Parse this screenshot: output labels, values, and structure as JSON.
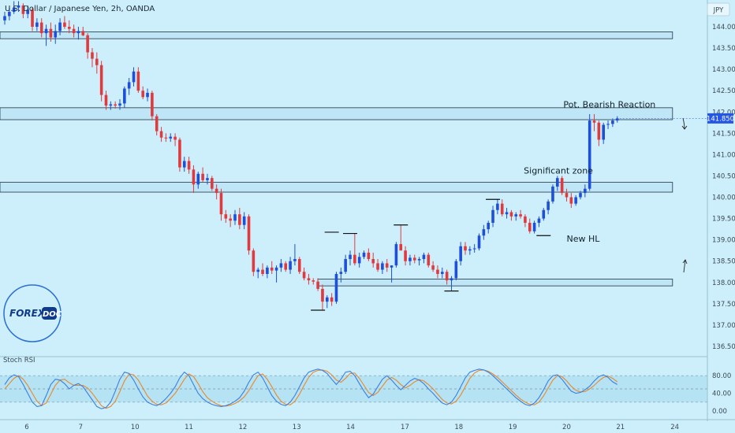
{
  "chart_data": {
    "type": "candlestick",
    "title": "U.S. Dollar / Japanese Yen, 2h, OANDA",
    "currency_label": "JPY",
    "last_price": "141.850",
    "colors": {
      "background": "#cdeffb",
      "up": "#1f4fd8",
      "down": "#e03a3e",
      "zone_fill": "#bfe6f7",
      "zone_stroke": "#22323d",
      "rsi_k": "#3b7fe0",
      "rsi_d": "#e8892a",
      "price_badge": "#2456e6"
    },
    "ylim": [
      136.5,
      144.0
    ],
    "yticks": [
      "144.000",
      "143.500",
      "143.000",
      "142.500",
      "142.000",
      "141.500",
      "141.000",
      "140.500",
      "140.000",
      "139.500",
      "139.000",
      "138.500",
      "138.000",
      "137.500",
      "137.000",
      "136.500"
    ],
    "xticks": [
      {
        "label": "6",
        "pos": 0
      },
      {
        "label": "7",
        "pos": 11.7
      },
      {
        "label": "10",
        "pos": 23.5
      },
      {
        "label": "11",
        "pos": 35.2
      },
      {
        "label": "12",
        "pos": 46.9
      },
      {
        "label": "13",
        "pos": 58.6
      },
      {
        "label": "14",
        "pos": 70.3
      },
      {
        "label": "17",
        "pos": 82.1
      },
      {
        "label": "18",
        "pos": 93.8
      },
      {
        "label": "19",
        "pos": 105.5
      },
      {
        "label": "20",
        "pos": 117.2
      },
      {
        "label": "21",
        "pos": 128.9
      },
      {
        "label": "24",
        "pos": 140.7
      }
    ],
    "zones": [
      {
        "top": 143.88,
        "bottom": 143.72,
        "x_start": 0,
        "x_end": 145
      },
      {
        "top": 142.1,
        "bottom": 141.82,
        "x_start": 0,
        "x_end": 145
      },
      {
        "top": 140.35,
        "bottom": 140.12,
        "x_start": 0,
        "x_end": 145
      },
      {
        "top": 138.08,
        "bottom": 137.92,
        "x_start": 69,
        "x_end": 145
      }
    ],
    "annotations": [
      {
        "text": "Pot. Bearish Reaction",
        "x": 121.3,
        "y": 142.05
      },
      {
        "text": "Significant zone",
        "x": 112.7,
        "y": 140.5
      },
      {
        "text": "New HL",
        "x": 122,
        "y": 138.9
      }
    ],
    "logo": {
      "part1": "FOREX",
      "part2": "DOC"
    },
    "ohlc": [
      [
        144.15,
        144.35,
        144.05,
        144.25
      ],
      [
        144.25,
        144.45,
        144.15,
        144.35
      ],
      [
        144.35,
        144.6,
        144.3,
        144.45
      ],
      [
        144.45,
        144.65,
        144.35,
        144.5
      ],
      [
        144.5,
        144.55,
        144.2,
        144.3
      ],
      [
        144.3,
        144.5,
        144.2,
        144.4
      ],
      [
        144.4,
        144.45,
        143.9,
        144
      ],
      [
        144,
        144.2,
        143.9,
        144.1
      ],
      [
        144.1,
        144.2,
        143.75,
        143.85
      ],
      [
        143.85,
        144.05,
        143.55,
        143.95
      ],
      [
        143.95,
        144.1,
        143.65,
        143.75
      ],
      [
        143.75,
        144.05,
        143.6,
        143.9
      ],
      [
        143.9,
        144.2,
        143.8,
        144.1
      ],
      [
        144.1,
        144.25,
        143.95,
        144
      ],
      [
        144,
        144.15,
        143.85,
        143.95
      ],
      [
        143.95,
        144.05,
        143.75,
        143.85
      ],
      [
        143.85,
        144,
        143.7,
        143.9
      ],
      [
        143.9,
        144,
        143.78,
        143.8
      ],
      [
        143.8,
        143.85,
        143.25,
        143.4
      ],
      [
        143.4,
        143.5,
        143.05,
        143.25
      ],
      [
        143.25,
        143.4,
        142.9,
        143.1
      ],
      [
        143.1,
        143.2,
        142.25,
        142.4
      ],
      [
        142.4,
        142.5,
        142.05,
        142.15
      ],
      [
        142.15,
        142.25,
        142.05,
        142.18
      ],
      [
        142.18,
        142.25,
        142.08,
        142.15
      ],
      [
        142.15,
        142.3,
        142.05,
        142.2
      ],
      [
        142.2,
        142.6,
        142.1,
        142.55
      ],
      [
        142.55,
        142.8,
        142.4,
        142.7
      ],
      [
        142.7,
        143.05,
        142.6,
        142.95
      ],
      [
        142.95,
        143.05,
        142.45,
        142.5
      ],
      [
        142.5,
        142.6,
        142.3,
        142.35
      ],
      [
        142.35,
        142.55,
        142.25,
        142.45
      ],
      [
        142.45,
        142.5,
        141.8,
        141.9
      ],
      [
        141.9,
        141.95,
        141.45,
        141.55
      ],
      [
        141.55,
        141.65,
        141.3,
        141.4
      ],
      [
        141.4,
        141.5,
        141.3,
        141.38
      ],
      [
        141.38,
        141.5,
        141.3,
        141.42
      ],
      [
        141.42,
        141.5,
        141.2,
        141.35
      ],
      [
        141.35,
        141.4,
        140.6,
        140.7
      ],
      [
        140.7,
        140.95,
        140.6,
        140.85
      ],
      [
        140.85,
        140.95,
        140.55,
        140.65
      ],
      [
        140.65,
        140.75,
        140.1,
        140.3
      ],
      [
        140.3,
        140.6,
        140.2,
        140.55
      ],
      [
        140.55,
        140.7,
        140.35,
        140.4
      ],
      [
        140.4,
        140.55,
        140.3,
        140.45
      ],
      [
        140.45,
        140.5,
        140.15,
        140.2
      ],
      [
        140.2,
        140.3,
        139.95,
        140.1
      ],
      [
        140.1,
        140.2,
        139.45,
        139.6
      ],
      [
        139.6,
        139.7,
        139.4,
        139.5
      ],
      [
        139.5,
        139.6,
        139.3,
        139.45
      ],
      [
        139.45,
        139.7,
        139.35,
        139.6
      ],
      [
        139.6,
        139.75,
        139.25,
        139.35
      ],
      [
        139.35,
        139.65,
        139.25,
        139.55
      ],
      [
        139.55,
        139.6,
        138.65,
        138.75
      ],
      [
        138.75,
        138.8,
        138.15,
        138.25
      ],
      [
        138.25,
        138.35,
        138.1,
        138.3
      ],
      [
        138.3,
        138.45,
        138.15,
        138.2
      ],
      [
        138.2,
        138.4,
        138.1,
        138.35
      ],
      [
        138.35,
        138.5,
        138.2,
        138.28
      ],
      [
        138.28,
        138.4,
        138,
        138.35
      ],
      [
        138.35,
        138.55,
        138.25,
        138.45
      ],
      [
        138.45,
        138.5,
        138.25,
        138.3
      ],
      [
        138.3,
        138.6,
        138.2,
        138.5
      ],
      [
        138.5,
        138.9,
        138.4,
        138.55
      ],
      [
        138.55,
        138.6,
        138.2,
        138.25
      ],
      [
        138.25,
        138.35,
        138.05,
        138.1
      ],
      [
        138.1,
        138.2,
        137.95,
        138.05
      ],
      [
        138.05,
        138.1,
        137.95,
        138.02
      ],
      [
        138.02,
        138.1,
        137.8,
        137.85
      ],
      [
        137.85,
        137.95,
        137.35,
        137.55
      ],
      [
        137.55,
        137.7,
        137.4,
        137.65
      ],
      [
        137.65,
        137.75,
        137.45,
        137.55
      ],
      [
        137.55,
        138.25,
        137.5,
        138.2
      ],
      [
        138.2,
        138.35,
        138,
        138.25
      ],
      [
        138.25,
        138.65,
        138.2,
        138.55
      ],
      [
        138.55,
        138.75,
        138.4,
        138.65
      ],
      [
        138.65,
        139.15,
        138.4,
        138.45
      ],
      [
        138.45,
        138.7,
        138.35,
        138.6
      ],
      [
        138.6,
        138.75,
        138.55,
        138.7
      ],
      [
        138.7,
        138.8,
        138.5,
        138.55
      ],
      [
        138.55,
        138.7,
        138.35,
        138.45
      ],
      [
        138.45,
        138.55,
        138.25,
        138.3
      ],
      [
        138.3,
        138.5,
        138.2,
        138.45
      ],
      [
        138.45,
        138.55,
        138.25,
        138.35
      ],
      [
        138.35,
        138.4,
        138,
        138.4
      ],
      [
        138.4,
        138.95,
        138.35,
        138.9
      ],
      [
        138.9,
        139.35,
        138.8,
        138.75
      ],
      [
        138.75,
        138.85,
        138.4,
        138.5
      ],
      [
        138.5,
        138.65,
        138.4,
        138.58
      ],
      [
        138.58,
        138.65,
        138.45,
        138.52
      ],
      [
        138.52,
        138.6,
        138.4,
        138.55
      ],
      [
        138.55,
        138.7,
        138.45,
        138.65
      ],
      [
        138.65,
        138.7,
        138.35,
        138.4
      ],
      [
        138.4,
        138.5,
        138.25,
        138.3
      ],
      [
        138.3,
        138.4,
        138.1,
        138.2
      ],
      [
        138.2,
        138.35,
        138.1,
        138.25
      ],
      [
        138.25,
        138.3,
        137.95,
        138.05
      ],
      [
        138.05,
        138.15,
        137.8,
        138.1
      ],
      [
        138.1,
        138.55,
        138.05,
        138.5
      ],
      [
        138.5,
        138.95,
        138.4,
        138.85
      ],
      [
        138.85,
        138.95,
        138.65,
        138.75
      ],
      [
        138.75,
        138.85,
        138.65,
        138.78
      ],
      [
        138.78,
        138.9,
        138.7,
        138.8
      ],
      [
        138.8,
        139.15,
        138.75,
        139.1
      ],
      [
        139.1,
        139.35,
        139,
        139.25
      ],
      [
        139.25,
        139.45,
        139.15,
        139.4
      ],
      [
        139.4,
        139.8,
        139.3,
        139.7
      ],
      [
        139.7,
        139.95,
        139.6,
        139.85
      ],
      [
        139.85,
        139.95,
        139.55,
        139.6
      ],
      [
        139.6,
        139.75,
        139.5,
        139.65
      ],
      [
        139.65,
        139.7,
        139.45,
        139.55
      ],
      [
        139.55,
        139.65,
        139.45,
        139.6
      ],
      [
        139.6,
        139.7,
        139.5,
        139.55
      ],
      [
        139.55,
        139.6,
        139.3,
        139.4
      ],
      [
        139.4,
        139.5,
        139.15,
        139.2
      ],
      [
        139.2,
        139.45,
        139.15,
        139.4
      ],
      [
        139.4,
        139.55,
        139.3,
        139.5
      ],
      [
        139.5,
        139.75,
        139.45,
        139.7
      ],
      [
        139.7,
        139.95,
        139.6,
        139.9
      ],
      [
        139.9,
        140.3,
        139.85,
        140.25
      ],
      [
        140.25,
        140.5,
        140.15,
        140.45
      ],
      [
        140.45,
        140.5,
        140.05,
        140.1
      ],
      [
        140.1,
        140.2,
        139.9,
        140
      ],
      [
        140,
        140.1,
        139.75,
        139.85
      ],
      [
        139.85,
        140.05,
        139.8,
        140
      ],
      [
        140,
        140.15,
        139.95,
        140.1
      ],
      [
        140.1,
        140.3,
        140,
        140.2
      ],
      [
        140.2,
        141.95,
        140.15,
        141.8
      ],
      [
        141.8,
        141.95,
        141.55,
        141.75
      ],
      [
        141.75,
        141.8,
        141.2,
        141.35
      ],
      [
        141.35,
        141.75,
        141.25,
        141.7
      ],
      [
        141.7,
        141.8,
        141.6,
        141.72
      ],
      [
        141.72,
        141.85,
        141.65,
        141.8
      ],
      [
        141.8,
        141.9,
        141.75,
        141.85
      ]
    ],
    "stoch_rsi": {
      "label": "Stoch RSI",
      "ylim": [
        0,
        100
      ],
      "yticks": [
        "80.00",
        "40.00",
        "0.00"
      ],
      "levels": [
        80,
        50,
        20
      ],
      "k": [
        60,
        75,
        82,
        78,
        60,
        40,
        20,
        10,
        12,
        35,
        60,
        72,
        70,
        62,
        50,
        58,
        62,
        55,
        40,
        25,
        10,
        5,
        8,
        20,
        45,
        72,
        88,
        85,
        70,
        50,
        32,
        20,
        15,
        12,
        18,
        28,
        40,
        55,
        75,
        88,
        80,
        60,
        40,
        28,
        20,
        15,
        12,
        10,
        12,
        16,
        22,
        30,
        45,
        65,
        82,
        88,
        75,
        55,
        35,
        22,
        15,
        12,
        20,
        35,
        55,
        75,
        88,
        92,
        95,
        92,
        85,
        72,
        60,
        72,
        88,
        90,
        80,
        62,
        45,
        30,
        38,
        55,
        72,
        80,
        70,
        58,
        48,
        58,
        68,
        74,
        70,
        62,
        50,
        40,
        28,
        18,
        14,
        20,
        35,
        55,
        75,
        88,
        92,
        95,
        93,
        88,
        80,
        70,
        60,
        50,
        40,
        30,
        22,
        15,
        12,
        18,
        30,
        48,
        68,
        80,
        82,
        72,
        58,
        45,
        40,
        42,
        48,
        56,
        68,
        78,
        82,
        76,
        66,
        60
      ],
      "d": [
        50,
        62,
        74,
        80,
        72,
        58,
        40,
        22,
        12,
        18,
        38,
        58,
        70,
        72,
        64,
        58,
        58,
        58,
        52,
        40,
        26,
        12,
        6,
        10,
        22,
        44,
        68,
        84,
        82,
        70,
        52,
        34,
        22,
        15,
        14,
        18,
        28,
        40,
        55,
        72,
        84,
        78,
        62,
        44,
        30,
        22,
        16,
        12,
        11,
        13,
        17,
        23,
        32,
        46,
        64,
        80,
        84,
        72,
        55,
        36,
        22,
        15,
        14,
        22,
        38,
        58,
        76,
        88,
        92,
        93,
        90,
        82,
        70,
        65,
        74,
        85,
        86,
        74,
        58,
        42,
        35,
        42,
        56,
        70,
        76,
        70,
        60,
        52,
        58,
        66,
        71,
        68,
        60,
        50,
        38,
        26,
        18,
        16,
        22,
        36,
        55,
        74,
        86,
        92,
        93,
        90,
        84,
        76,
        66,
        56,
        46,
        36,
        27,
        20,
        15,
        14,
        20,
        34,
        52,
        70,
        80,
        78,
        68,
        56,
        47,
        43,
        44,
        50,
        58,
        68,
        76,
        79,
        74,
        66
      ]
    }
  }
}
